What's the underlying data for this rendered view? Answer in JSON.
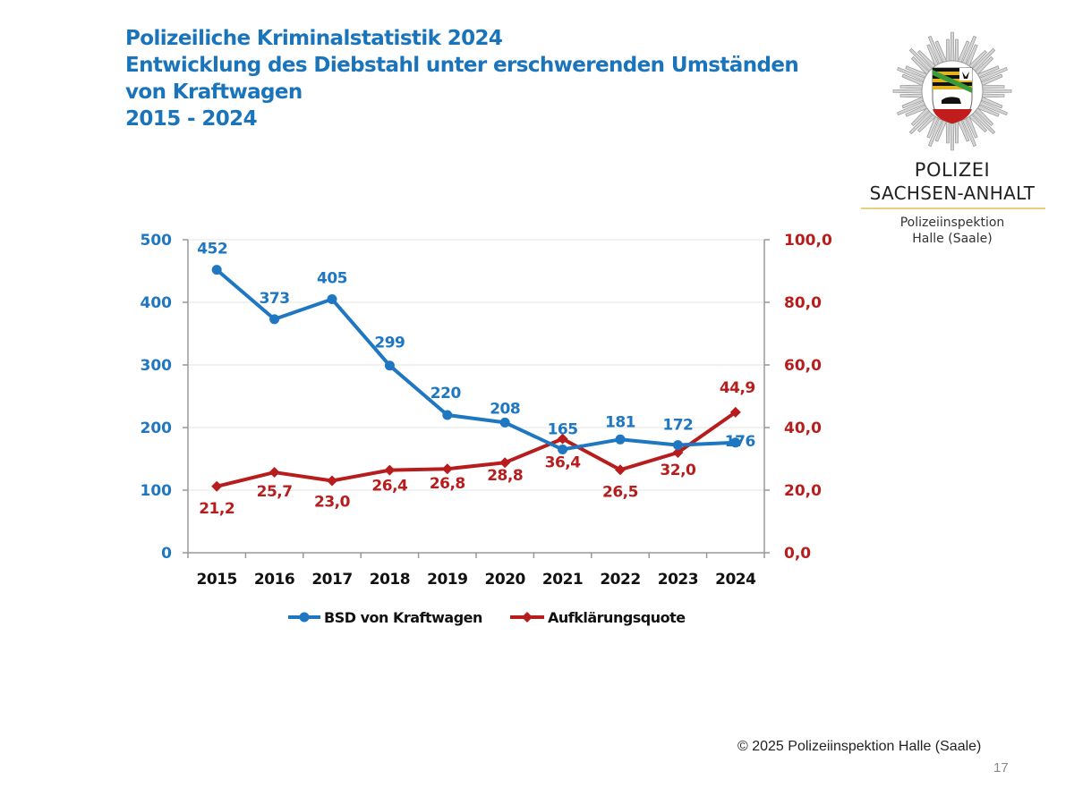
{
  "header": {
    "title_lines": [
      "Polizeiliche Kriminalstatistik 2024",
      "Entwicklung des Diebstahl unter erschwerenden Umständen",
      "von Kraftwagen",
      "2015 - 2024"
    ]
  },
  "logo": {
    "line1": "POLIZEI",
    "line2": "SACHSEN-ANHALT",
    "line3": "Polizeiinspektion",
    "line4": "Halle (Saale)",
    "icon": "police-star-badge-icon"
  },
  "colors": {
    "title": "#1a74bb",
    "series_blue": "#1f77c2",
    "series_red": "#b81d1d",
    "grid": "#e6e6e6",
    "axis": "#999999"
  },
  "footer": {
    "copyright": "© 2025 Polizeiinspektion Halle (Saale)",
    "page_number": "17"
  },
  "chart_data": {
    "type": "line",
    "title": "Entwicklung des Diebstahl unter erschwerenden Umständen von Kraftwagen 2015 - 2024",
    "categories": [
      "2015",
      "2016",
      "2017",
      "2018",
      "2019",
      "2020",
      "2021",
      "2022",
      "2023",
      "2024"
    ],
    "series": [
      {
        "name": "BSD von Kraftwagen",
        "axis": "left",
        "color": "#1f77c2",
        "marker": "circle",
        "values": [
          452,
          373,
          405,
          299,
          220,
          208,
          165,
          181,
          172,
          176
        ],
        "labels": [
          "452",
          "373",
          "405",
          "299",
          "220",
          "208",
          "165",
          "181",
          "172",
          "176"
        ]
      },
      {
        "name": "Aufklärungsquote",
        "axis": "right",
        "color": "#b81d1d",
        "marker": "diamond",
        "values": [
          21.2,
          25.7,
          23.0,
          26.4,
          26.8,
          28.8,
          36.4,
          26.5,
          32.0,
          44.9
        ],
        "labels": [
          "21,2",
          "25,7",
          "23,0",
          "26,4",
          "26,8",
          "28,8",
          "36,4",
          "26,5",
          "32,0",
          "44,9"
        ]
      }
    ],
    "y_left": {
      "min": 0,
      "max": 500,
      "ticks": [
        0,
        100,
        200,
        300,
        400,
        500
      ],
      "tick_labels": [
        "0",
        "100",
        "200",
        "300",
        "400",
        "500"
      ]
    },
    "y_right": {
      "min": 0,
      "max": 100,
      "ticks": [
        0,
        20,
        40,
        60,
        80,
        100
      ],
      "tick_labels": [
        "0,0",
        "20,0",
        "40,0",
        "60,0",
        "80,0",
        "100,0"
      ]
    },
    "xlabel": "",
    "ylabel": "",
    "grid": true,
    "legend": {
      "position": "bottom",
      "entries": [
        "BSD von Kraftwagen",
        "Aufklärungsquote"
      ]
    }
  }
}
